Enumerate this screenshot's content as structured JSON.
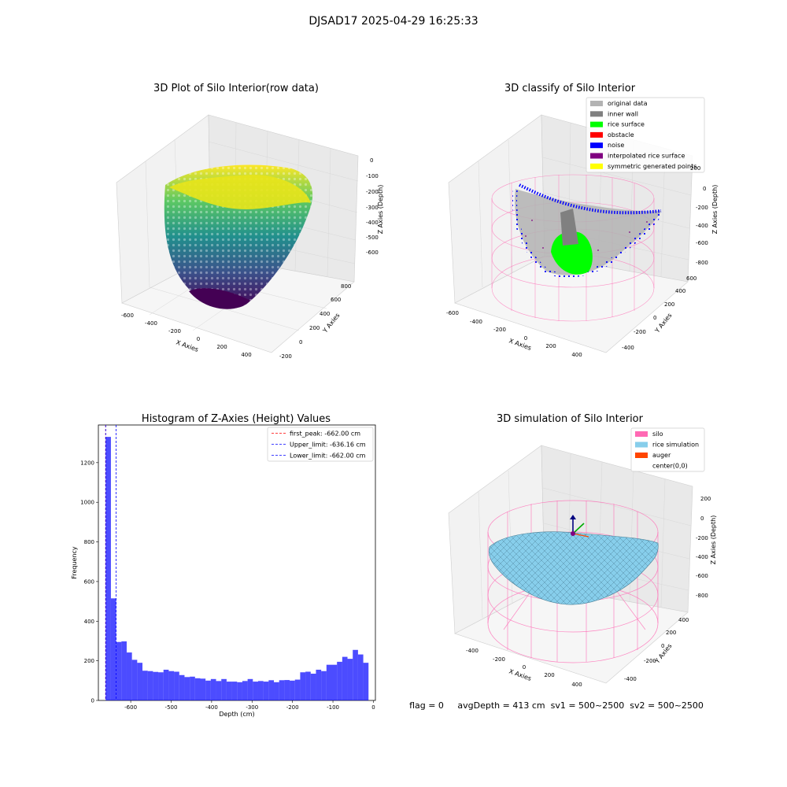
{
  "figure": {
    "suptitle": "DJSAD17 2025-04-29 16:25:33",
    "footer": "flag = 0     avgDepth = 413 cm  sv1 = 500~2500  sv2 = 500~2500"
  },
  "chart_data": [
    {
      "type": "scatter3d",
      "title": "3D Plot of Silo Interior(row data)",
      "xlabel": "X Axies",
      "ylabel": "Y Axies",
      "zlabel": "Z Axies (Depth)",
      "x_ticks": [
        -600,
        -400,
        -200,
        0,
        200,
        400
      ],
      "y_ticks": [
        -200,
        0,
        200,
        400,
        600,
        800
      ],
      "z_ticks": [
        0,
        -100,
        -200,
        -300,
        -400,
        -500,
        -600
      ],
      "colormap": "viridis"
    },
    {
      "type": "scatter3d",
      "title": "3D classify of Silo Interior",
      "xlabel": "X Axies",
      "ylabel": "Y Axies",
      "zlabel": "Z Axies (Depth)",
      "x_ticks": [
        -600,
        -400,
        -200,
        0,
        200,
        400
      ],
      "y_ticks": [
        -400,
        -200,
        0,
        200,
        400,
        600
      ],
      "z_ticks": [
        0,
        -200,
        -400,
        -600,
        -800
      ],
      "legend_position": "top-right",
      "legend": [
        {
          "label": "original data",
          "color": "#b3b3b3"
        },
        {
          "label": "inner wall",
          "color": "#808080"
        },
        {
          "label": "rice surface",
          "color": "#00ff00"
        },
        {
          "label": "obstacle",
          "color": "#ff0000"
        },
        {
          "label": "noise",
          "color": "#0000ff"
        },
        {
          "label": "interpolated rice surface",
          "color": "#800080"
        },
        {
          "label": "symmetric generated points",
          "color": "#ffff00"
        }
      ],
      "extra_tick": "200"
    },
    {
      "type": "bar",
      "title": "Histogram of Z-Axies (Height) Values",
      "xlabel": "Depth (cm)",
      "ylabel": "Frequency",
      "color": "#0000ff",
      "xlim": [
        -680,
        5
      ],
      "ylim": [
        0,
        1390
      ],
      "x_ticks": [
        -600,
        -500,
        -400,
        -300,
        -200,
        -100,
        0
      ],
      "y_ticks": [
        0,
        200,
        400,
        600,
        800,
        1000,
        1200
      ],
      "bin_start": -662,
      "bin_width": 13,
      "values": [
        1330,
        515,
        295,
        298,
        242,
        205,
        190,
        150,
        148,
        144,
        142,
        155,
        148,
        145,
        128,
        118,
        120,
        112,
        110,
        100,
        108,
        98,
        108,
        95,
        95,
        92,
        98,
        108,
        95,
        98,
        95,
        102,
        92,
        102,
        103,
        100,
        105,
        142,
        145,
        135,
        155,
        148,
        180,
        180,
        195,
        220,
        210,
        255,
        232,
        190
      ],
      "lines": [
        {
          "label": "first_peak: -662.00 cm",
          "value": -662.0,
          "color": "#ff0000"
        },
        {
          "label": "Upper_limit: -636.16 cm",
          "value": -636.16,
          "color": "#0000ff"
        },
        {
          "label": "Lower_limit: -662.00 cm",
          "value": -662.0,
          "color": "#0000ff"
        }
      ],
      "legend_position": "top-right"
    },
    {
      "type": "surface3d",
      "title": "3D simulation of Silo Interior",
      "xlabel": "X Axies",
      "ylabel": "Y Axies",
      "zlabel": "Z Axies (Depth)",
      "x_ticks": [
        -400,
        -200,
        0,
        200,
        400
      ],
      "y_ticks": [
        -400,
        -200,
        0,
        200,
        400
      ],
      "z_ticks": [
        200,
        0,
        -200,
        -400,
        -600,
        -800
      ],
      "legend_position": "top-right",
      "legend": [
        {
          "label": "silo",
          "color": "#ff69b4"
        },
        {
          "label": "rice simulation",
          "color": "#87ceeb"
        },
        {
          "label": "auger",
          "color": "#ff4500"
        },
        {
          "label": "center(0,0)",
          "color": "#ffffff"
        }
      ]
    }
  ]
}
